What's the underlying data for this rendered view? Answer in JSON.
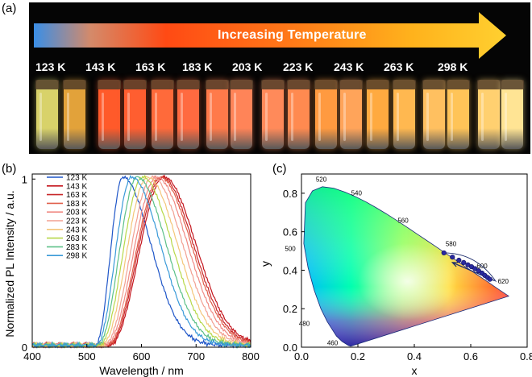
{
  "panel_labels": {
    "a": "(a)",
    "b": "(b)",
    "c": "(c)"
  },
  "panel_a": {
    "arrow_text": "Increasing Temperature",
    "temperatures": [
      "123 K",
      "143 K",
      "163 K",
      "183 K",
      "203 K",
      "223 K",
      "243 K",
      "263 K",
      "298 K"
    ],
    "vial_colors": [
      "#d8d26a",
      "#e2a23a",
      "#ff5a2a",
      "#ff5e30",
      "#ff6a3a",
      "#ff6a40",
      "#ff7a4a",
      "#ff8458",
      "#ff8a5a",
      "#ff8a50",
      "#ff9a40",
      "#ffa45a",
      "#ffaa40",
      "#ffb850",
      "#ffc060",
      "#ffc458",
      "#ffd070",
      "#ffe494"
    ]
  },
  "chart_data": [
    {
      "type": "line",
      "title": "",
      "xlabel": "Wavelength / nm",
      "ylabel": "Normalized PL Intensity / a.u.",
      "xlim": [
        400,
        800
      ],
      "ylim": [
        0,
        1.03
      ],
      "xticks": [
        "400",
        "500",
        "600",
        "700",
        "800"
      ],
      "yticks": [
        "0",
        "1"
      ],
      "legend_position": "top-left",
      "series": [
        {
          "name": "123 K",
          "peak": 566,
          "onset": 515,
          "width_right": 68,
          "color": "#1f56c8"
        },
        {
          "name": "143 K",
          "peak": 641,
          "onset": 540,
          "width_right": 78,
          "color": "#c4141c"
        },
        {
          "name": "163 K",
          "peak": 637,
          "onset": 538,
          "width_right": 77,
          "color": "#c8282a"
        },
        {
          "name": "183 K",
          "peak": 634,
          "onset": 536,
          "width_right": 76,
          "color": "#e0604c"
        },
        {
          "name": "203 K",
          "peak": 628,
          "onset": 533,
          "width_right": 75,
          "color": "#f08a84"
        },
        {
          "name": "223 K",
          "peak": 620,
          "onset": 530,
          "width_right": 74,
          "color": "#f2a092"
        },
        {
          "name": "243 K",
          "peak": 611,
          "onset": 526,
          "width_right": 73,
          "color": "#f4c67a"
        },
        {
          "name": "263 K",
          "peak": 602,
          "onset": 522,
          "width_right": 72,
          "color": "#b7d84a"
        },
        {
          "name": "283 K",
          "peak": 592,
          "onset": 519,
          "width_right": 71,
          "color": "#5cc088"
        },
        {
          "name": "298 K",
          "peak": 582,
          "onset": 516,
          "width_right": 70,
          "color": "#3a9ad8"
        }
      ]
    },
    {
      "type": "scatter",
      "title": "",
      "xlabel": "x",
      "ylabel": "y",
      "xlim": [
        0.0,
        0.8
      ],
      "ylim": [
        0.0,
        0.9
      ],
      "xticks": [
        "0.0",
        "0.2",
        "0.4",
        "0.6",
        "0.8"
      ],
      "yticks": [
        "0.0",
        "0.2",
        "0.4",
        "0.6",
        "0.8"
      ],
      "wavelength_labels": [
        "520",
        "540",
        "560",
        "580",
        "600",
        "620",
        "500",
        "480",
        "460"
      ],
      "locus": [
        [
          0.1741,
          0.005
        ],
        [
          0.1666,
          0.0089
        ],
        [
          0.144,
          0.0297
        ],
        [
          0.1241,
          0.0578
        ],
        [
          0.0913,
          0.1327
        ],
        [
          0.0687,
          0.2007
        ],
        [
          0.0454,
          0.295
        ],
        [
          0.0235,
          0.4127
        ],
        [
          0.0082,
          0.5384
        ],
        [
          0.0139,
          0.7502
        ],
        [
          0.0389,
          0.812
        ],
        [
          0.0743,
          0.8338
        ],
        [
          0.1142,
          0.8262
        ],
        [
          0.1547,
          0.8059
        ],
        [
          0.1929,
          0.7816
        ],
        [
          0.2296,
          0.7543
        ],
        [
          0.2658,
          0.7243
        ],
        [
          0.3016,
          0.6923
        ],
        [
          0.3373,
          0.6589
        ],
        [
          0.3731,
          0.6245
        ],
        [
          0.4087,
          0.5896
        ],
        [
          0.4441,
          0.5547
        ],
        [
          0.4788,
          0.5202
        ],
        [
          0.5125,
          0.4866
        ],
        [
          0.5448,
          0.4544
        ],
        [
          0.5752,
          0.4242
        ],
        [
          0.6029,
          0.3965
        ],
        [
          0.627,
          0.3725
        ],
        [
          0.6482,
          0.3514
        ],
        [
          0.6658,
          0.334
        ],
        [
          0.6915,
          0.3083
        ],
        [
          0.7347,
          0.2653
        ]
      ],
      "points": [
        [
          0.505,
          0.49
        ],
        [
          0.535,
          0.468
        ],
        [
          0.558,
          0.452
        ],
        [
          0.575,
          0.44
        ],
        [
          0.59,
          0.428
        ],
        [
          0.603,
          0.418
        ],
        [
          0.615,
          0.408
        ],
        [
          0.628,
          0.397
        ],
        [
          0.64,
          0.385
        ],
        [
          0.65,
          0.373
        ],
        [
          0.66,
          0.362
        ],
        [
          0.668,
          0.353
        ]
      ],
      "trend_arrow": {
        "from": [
          0.685,
          0.345
        ],
        "to": [
          0.535,
          0.44
        ]
      }
    }
  ]
}
